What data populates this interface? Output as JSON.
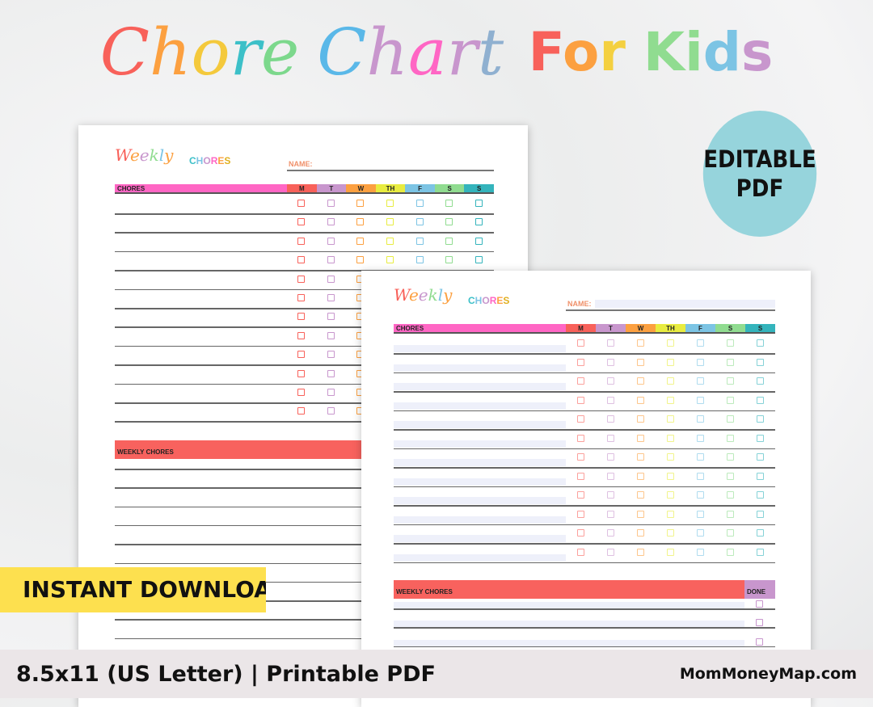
{
  "title": {
    "script_text": "Chore Chart",
    "bold_text": "For Kids",
    "script_colors": [
      "#f8615a",
      "#fca040",
      "#f4c93c",
      "#3cc0c8",
      "#7cd88c",
      "#ffffff",
      "#5ab8e8",
      "#c896cd",
      "#ff66c4",
      "#c896cd",
      "#8fb0d0"
    ],
    "bold_colors": [
      "#f8615a",
      "#fca040",
      "#f4d040",
      "#ffffff",
      "#90dc90",
      "#90dc90",
      "#7cc4e4",
      "#c896cd"
    ]
  },
  "sheet": {
    "weekly_script": "Weekly",
    "chores_word": "CHORES",
    "name_label": "NAME:",
    "header_label": "CHORES",
    "days": [
      {
        "label": "M",
        "color": "#f8615a"
      },
      {
        "label": "T",
        "color": "#c896cd"
      },
      {
        "label": "W",
        "color": "#fca040"
      },
      {
        "label": "TH",
        "color": "#e8ec40"
      },
      {
        "label": "F",
        "color": "#7cc4e4"
      },
      {
        "label": "S",
        "color": "#90dc90"
      },
      {
        "label": "S",
        "color": "#34b4bc"
      }
    ],
    "weekly_chores_label": "WEEKLY CHORES",
    "done_label": "DONE",
    "pink": "#ff66c4",
    "red": "#f8625e"
  },
  "badge": {
    "editable_line1": "EDITABLE",
    "editable_line2": "PDF",
    "instant_download": "INSTANT DOWNLOAD"
  },
  "footer": {
    "format": "8.5x11 (US Letter) | Printable PDF",
    "website": "MomMoneyMap.com"
  }
}
